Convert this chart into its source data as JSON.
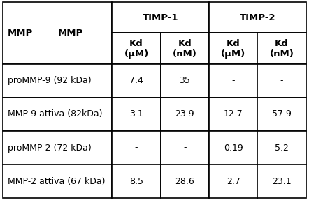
{
  "title": "MMP",
  "col_groups": [
    {
      "label": "TIMP-1",
      "cols": [
        "Kd\n(μM)",
        "Kd\n(nM)"
      ]
    },
    {
      "label": "TIMP-2",
      "cols": [
        "Kd\n(μM)",
        "Kd\n(nM)"
      ]
    }
  ],
  "rows": [
    [
      "proMMP-9 (92 kDa)",
      "7.4",
      "35",
      "-",
      "-"
    ],
    [
      "MMP-9 attiva (82kDa)",
      "3.1",
      "23.9",
      "12.7",
      "57.9"
    ],
    [
      "proMMP-2 (72 kDa)",
      "-",
      "-",
      "0.19",
      "5.2"
    ],
    [
      "MMP-2 attiva (67 kDa)",
      "8.5",
      "28.6",
      "2.7",
      "23.1"
    ]
  ],
  "bg_color": "#ffffff",
  "header_bg": "#ffffff",
  "line_color": "#000000",
  "text_color": "#000000",
  "font_size": 9,
  "header_font_size": 9.5
}
